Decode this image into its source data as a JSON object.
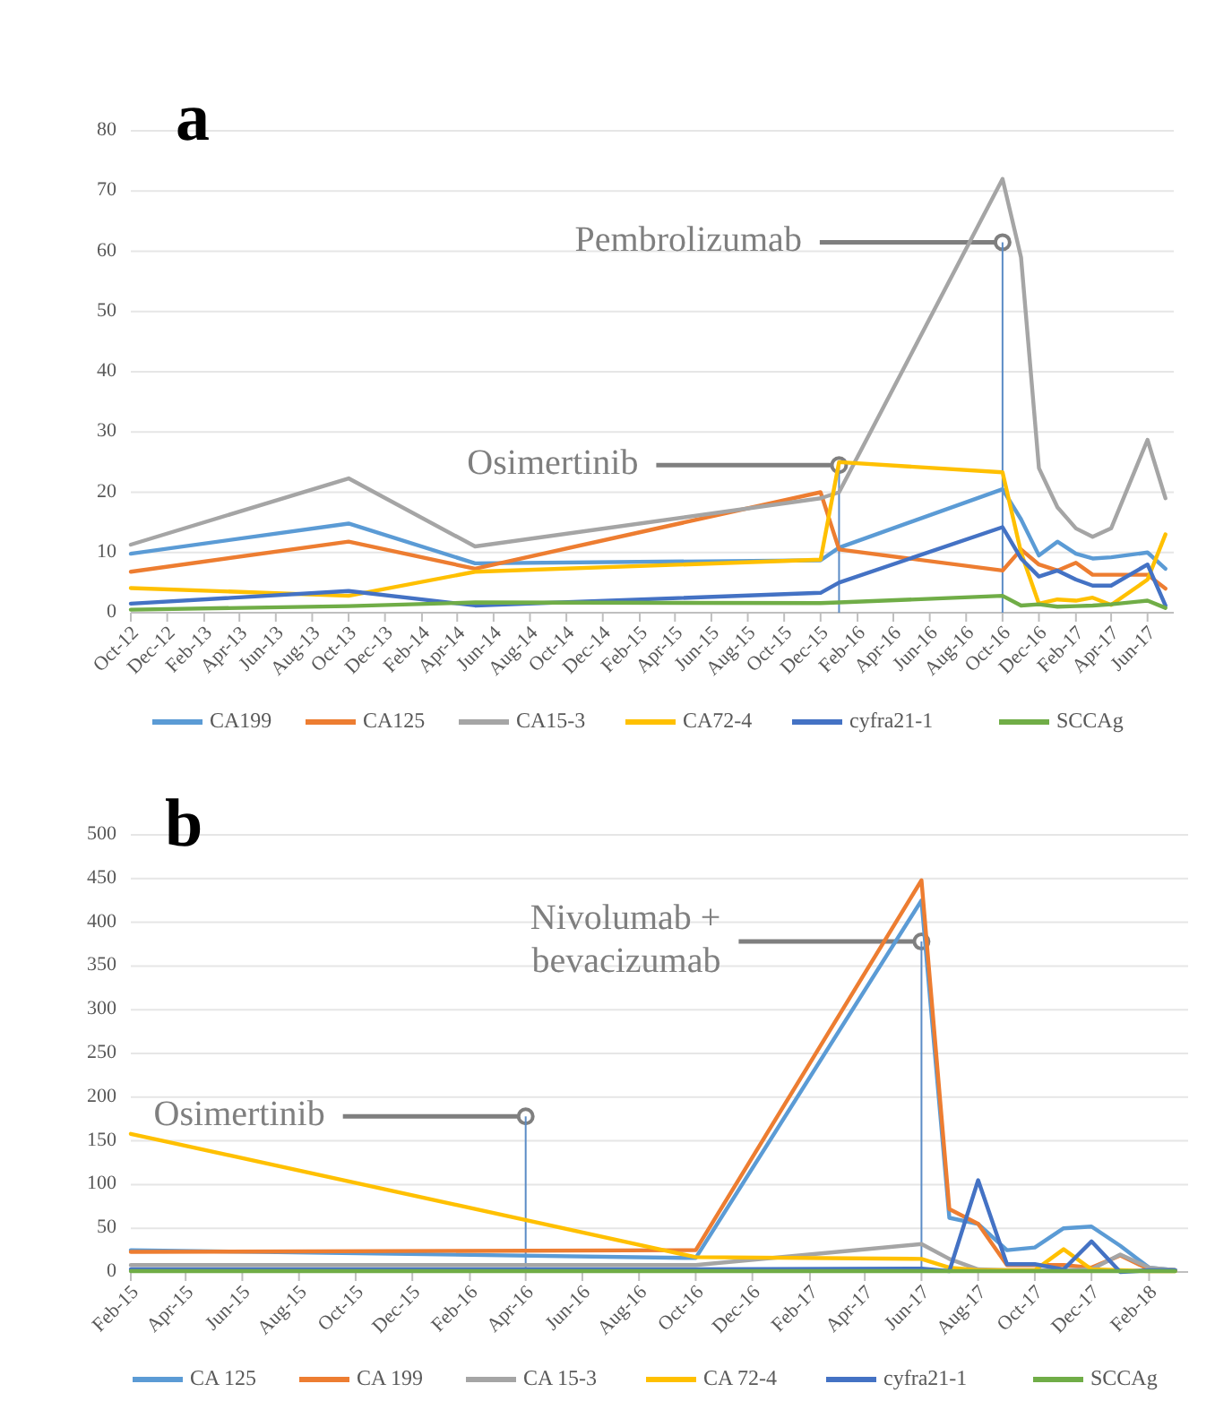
{
  "chart_data": [
    {
      "type": "line",
      "title": "a",
      "x": [
        "2012-10",
        "2013-10",
        "2014-05",
        "2015-12",
        "2016-01",
        "2016-10",
        "2016-11",
        "2016-12",
        "2017-01",
        "2017-02",
        "2017-03",
        "2017-04",
        "2017-06",
        "2017-07"
      ],
      "series": [
        {
          "name": "CA199",
          "color": "#5b9bd5",
          "values": [
            9.8,
            14.8,
            8.2,
            8.7,
            10.8,
            20.5,
            15.5,
            9.5,
            11.8,
            9.8,
            9,
            9.2,
            10,
            7.3
          ]
        },
        {
          "name": "CA125",
          "color": "#ed7d31",
          "values": [
            6.8,
            11.8,
            7.3,
            20,
            10.5,
            7,
            10.5,
            8,
            7,
            8.3,
            6.3,
            6.3,
            6.3,
            4
          ]
        },
        {
          "name": "CA15-3",
          "color": "#a5a5a5",
          "values": [
            11.3,
            22.3,
            11,
            19,
            20,
            72,
            59,
            24,
            17.5,
            14,
            12.6,
            14,
            28.7,
            19
          ]
        },
        {
          "name": "CA72-4",
          "color": "#ffc000",
          "values": [
            4.1,
            2.8,
            6.8,
            8.8,
            25,
            23.3,
            10,
            1.5,
            2.2,
            2,
            2.5,
            1.3,
            5.5,
            13
          ]
        },
        {
          "name": "cyfra21-1",
          "color": "#4472c4",
          "values": [
            1.5,
            3.6,
            1.2,
            3.3,
            5,
            14.2,
            9,
            6,
            7,
            5.5,
            4.5,
            4.5,
            8,
            1.2
          ]
        },
        {
          "name": "SCCAg",
          "color": "#70ad47",
          "values": [
            0.5,
            1.1,
            1.7,
            1.6,
            1.7,
            2.8,
            1.2,
            1.4,
            1,
            1.1,
            1.2,
            1.4,
            2,
            0.8
          ]
        }
      ],
      "xlim": [
        "2012-10-01",
        "2017-07-15"
      ],
      "xticks": [
        {
          "value": "2012-10",
          "label": "Oct-12"
        },
        {
          "value": "2012-12",
          "label": "Dec-12"
        },
        {
          "value": "2013-02",
          "label": "Feb-13"
        },
        {
          "value": "2013-04",
          "label": "Apr-13"
        },
        {
          "value": "2013-06",
          "label": "Jun-13"
        },
        {
          "value": "2013-08",
          "label": "Aug-13"
        },
        {
          "value": "2013-10",
          "label": "Oct-13"
        },
        {
          "value": "2013-12",
          "label": "Dec-13"
        },
        {
          "value": "2014-02",
          "label": "Feb-14"
        },
        {
          "value": "2014-04",
          "label": "Apr-14"
        },
        {
          "value": "2014-06",
          "label": "Jun-14"
        },
        {
          "value": "2014-08",
          "label": "Aug-14"
        },
        {
          "value": "2014-10",
          "label": "Oct-14"
        },
        {
          "value": "2014-12",
          "label": "Dec-14"
        },
        {
          "value": "2015-02",
          "label": "Feb-15"
        },
        {
          "value": "2015-04",
          "label": "Apr-15"
        },
        {
          "value": "2015-06",
          "label": "Jun-15"
        },
        {
          "value": "2015-08",
          "label": "Aug-15"
        },
        {
          "value": "2015-10",
          "label": "Oct-15"
        },
        {
          "value": "2015-12",
          "label": "Dec-15"
        },
        {
          "value": "2016-02",
          "label": "Feb-16"
        },
        {
          "value": "2016-04",
          "label": "Apr-16"
        },
        {
          "value": "2016-06",
          "label": "Jun-16"
        },
        {
          "value": "2016-08",
          "label": "Aug-16"
        },
        {
          "value": "2016-10",
          "label": "Oct-16"
        },
        {
          "value": "2016-12",
          "label": "Dec-16"
        },
        {
          "value": "2017-02",
          "label": "Feb-17"
        },
        {
          "value": "2017-04",
          "label": "Apr-17"
        },
        {
          "value": "2017-06",
          "label": "Jun-17"
        }
      ],
      "ylim": [
        0,
        80
      ],
      "yticks": [
        0,
        10,
        20,
        30,
        40,
        50,
        60,
        70,
        80
      ],
      "grid": "y",
      "legend": "bottom",
      "ref_lines": [
        {
          "axis": "x",
          "value": "2016-01",
          "color": "#5b8cc6"
        },
        {
          "axis": "x",
          "value": "2016-10",
          "color": "#5b8cc6"
        }
      ],
      "annotations": [
        {
          "text": "Osimertinib",
          "x": "2016-01",
          "y": 24.5
        },
        {
          "text": "Pembrolizumab",
          "x": "2016-10",
          "y": 61.5
        }
      ]
    },
    {
      "type": "line",
      "title": "b",
      "x": [
        "2015-02",
        "2016-10",
        "2017-06",
        "2017-07",
        "2017-08",
        "2017-09",
        "2017-10",
        "2017-11",
        "2017-12",
        "2018-01",
        "2018-02",
        "2018-03"
      ],
      "series": [
        {
          "name": "CA 125",
          "color": "#5b9bd5",
          "values": [
            25,
            16,
            425,
            62,
            55,
            25,
            28,
            50,
            52,
            30,
            5,
            2
          ]
        },
        {
          "name": "CA 199",
          "color": "#ed7d31",
          "values": [
            23,
            25,
            448,
            72,
            55,
            8,
            8,
            8,
            5,
            19,
            3,
            2
          ]
        },
        {
          "name": "CA 15-3",
          "color": "#a5a5a5",
          "values": [
            8,
            8,
            32,
            15,
            3,
            2,
            2,
            2,
            3,
            20,
            5,
            2
          ]
        },
        {
          "name": "CA 72-4",
          "color": "#ffc000",
          "values": [
            158,
            17,
            15,
            5,
            2,
            2,
            2,
            26,
            3,
            2,
            1,
            1
          ]
        },
        {
          "name": "cyfra21-1",
          "color": "#4472c4",
          "values": [
            3,
            3,
            4,
            1,
            105,
            9,
            9,
            3,
            35,
            0,
            2,
            2
          ]
        },
        {
          "name": "SCCAg",
          "color": "#70ad47",
          "values": [
            1,
            1,
            1,
            1,
            1,
            1,
            1,
            1,
            1,
            1,
            1,
            1
          ]
        }
      ],
      "xlim": [
        "2015-02-01",
        "2018-03-15"
      ],
      "xticks": [
        {
          "value": "2015-02",
          "label": "Feb-15"
        },
        {
          "value": "2015-04",
          "label": "Apr-15"
        },
        {
          "value": "2015-06",
          "label": "Jun-15"
        },
        {
          "value": "2015-08",
          "label": "Aug-15"
        },
        {
          "value": "2015-10",
          "label": "Oct-15"
        },
        {
          "value": "2015-12",
          "label": "Dec-15"
        },
        {
          "value": "2016-02",
          "label": "Feb-16"
        },
        {
          "value": "2016-04",
          "label": "Apr-16"
        },
        {
          "value": "2016-06",
          "label": "Jun-16"
        },
        {
          "value": "2016-08",
          "label": "Aug-16"
        },
        {
          "value": "2016-10",
          "label": "Oct-16"
        },
        {
          "value": "2016-12",
          "label": "Dec-16"
        },
        {
          "value": "2017-02",
          "label": "Feb-17"
        },
        {
          "value": "2017-04",
          "label": "Apr-17"
        },
        {
          "value": "2017-06",
          "label": "Jun-17"
        },
        {
          "value": "2017-08",
          "label": "Aug-17"
        },
        {
          "value": "2017-10",
          "label": "Oct-17"
        },
        {
          "value": "2017-12",
          "label": "Dec-17"
        },
        {
          "value": "2018-02",
          "label": "Feb-18"
        }
      ],
      "ylim": [
        0,
        500
      ],
      "yticks": [
        0,
        50,
        100,
        150,
        200,
        250,
        300,
        350,
        400,
        450,
        500
      ],
      "grid": "y",
      "legend": "bottom",
      "ref_lines": [
        {
          "axis": "x",
          "value": "2016-04",
          "color": "#5b8cc6"
        },
        {
          "axis": "x",
          "value": "2017-06",
          "color": "#5b8cc6"
        }
      ],
      "annotations": [
        {
          "text": "Osimertinib",
          "x": "2016-04",
          "y": 178
        },
        {
          "text": "Nivolumab +\nbevacizumab",
          "x": "2017-06",
          "y": 378
        }
      ]
    }
  ]
}
